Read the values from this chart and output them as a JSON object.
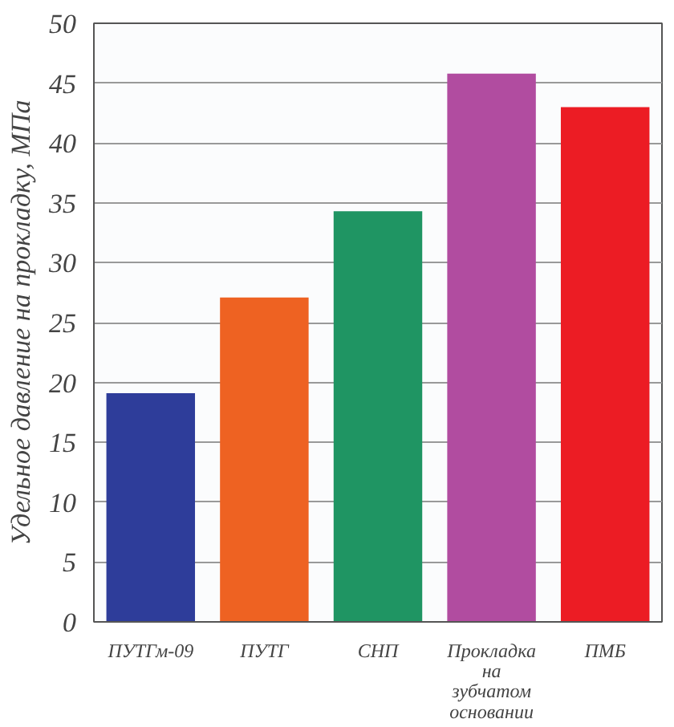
{
  "chart_data": {
    "type": "bar",
    "ylabel": "Удельное давление на прокладку, МПа",
    "categories": [
      "ПУТГм-09",
      "ПУТГ",
      "СНП",
      "Прокладка на зубчатом основании",
      "ПМБ"
    ],
    "values": [
      19.1,
      27.1,
      34.3,
      45.8,
      43.0
    ],
    "colors": [
      "#2e3d9a",
      "#ee6222",
      "#1f9563",
      "#b14ca0",
      "#ec1c24"
    ],
    "ylim": [
      0,
      50
    ],
    "yticks": [
      0,
      5,
      10,
      15,
      20,
      25,
      30,
      35,
      40,
      45,
      50
    ],
    "grid": "y"
  }
}
